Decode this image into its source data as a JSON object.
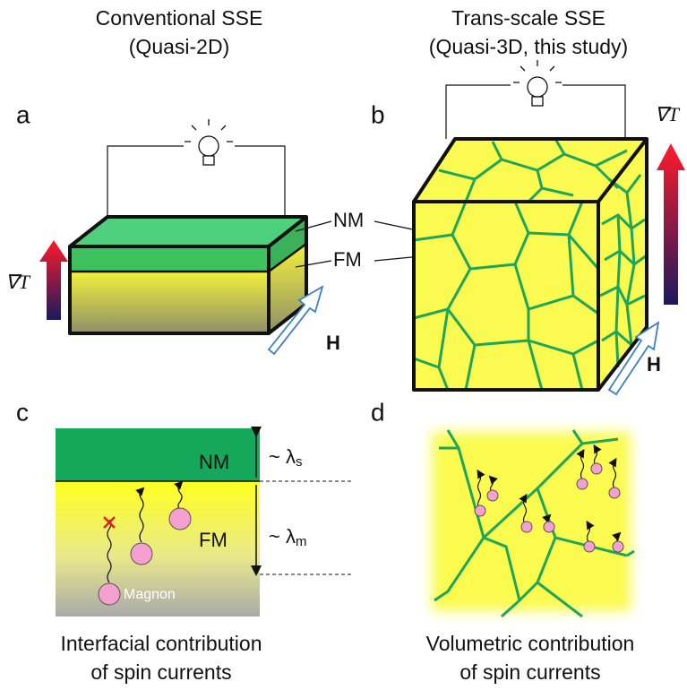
{
  "panels": [
    {
      "label": "a",
      "title": [
        "Conventional SSE",
        "(Quasi-2D)"
      ],
      "layers": [
        "NM",
        "FM"
      ],
      "gradient": "∇T",
      "field": "H"
    },
    {
      "label": "b",
      "title": [
        "Trans-scale SSE",
        "(Quasi-3D, this study)"
      ],
      "gradient": "∇T",
      "field": "H"
    },
    {
      "label": "c",
      "layers": [
        "NM",
        "FM"
      ],
      "thickness": [
        {
          "symbol": "~ λ",
          "sub": "s"
        },
        {
          "symbol": "~ λ",
          "sub": "m"
        }
      ],
      "particle": "Magnon",
      "caption": [
        "Interfacial contribution",
        "of spin currents"
      ]
    },
    {
      "label": "d",
      "caption": [
        "Volumetric contribution",
        "of spin currents"
      ]
    }
  ]
}
